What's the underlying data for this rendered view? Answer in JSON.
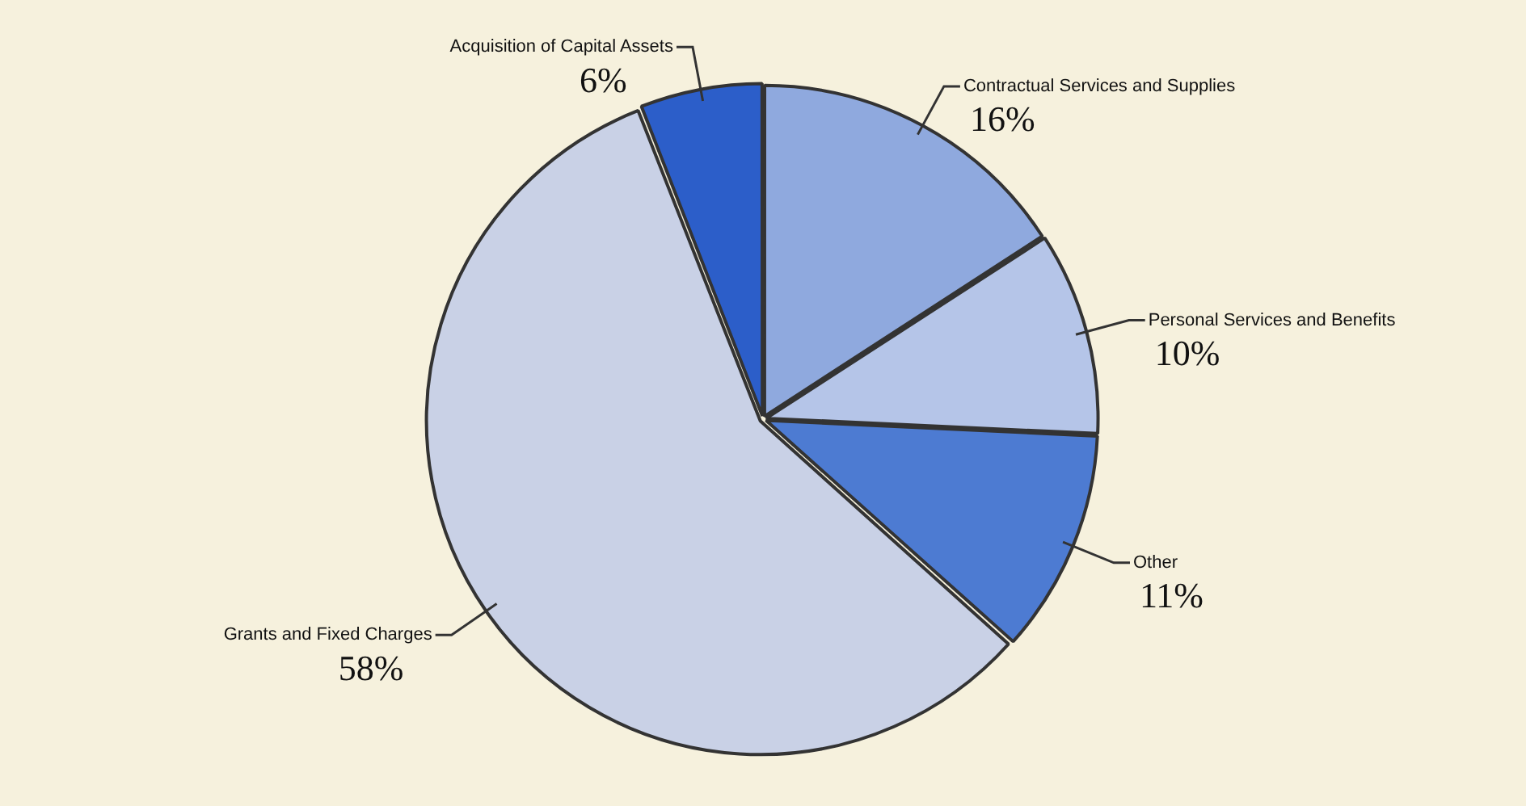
{
  "chart_data": {
    "type": "pie",
    "categories": [
      "Contractual Services and Supplies",
      "Personal Services and Benefits",
      "Other",
      "Grants and Fixed Charges",
      "Acquisition of Capital Assets"
    ],
    "values": [
      16,
      10,
      11,
      58,
      6
    ],
    "value_labels": [
      "16%",
      "10%",
      "11%",
      "58%",
      "6%"
    ],
    "colors": [
      "#8fa9de",
      "#b5c5e8",
      "#4d7bd2",
      "#c9d1e6",
      "#2c5ec9"
    ],
    "legend": false
  }
}
